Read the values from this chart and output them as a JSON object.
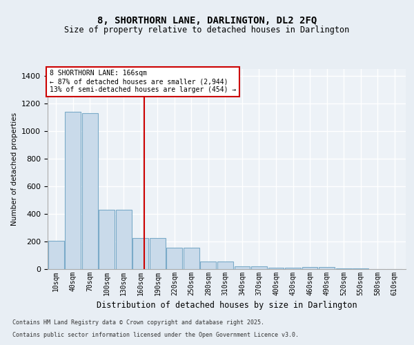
{
  "title1": "8, SHORTHORN LANE, DARLINGTON, DL2 2FQ",
  "title2": "Size of property relative to detached houses in Darlington",
  "xlabel": "Distribution of detached houses by size in Darlington",
  "ylabel": "Number of detached properties",
  "categories": [
    "10sqm",
    "40sqm",
    "70sqm",
    "100sqm",
    "130sqm",
    "160sqm",
    "190sqm",
    "220sqm",
    "250sqm",
    "280sqm",
    "310sqm",
    "340sqm",
    "370sqm",
    "400sqm",
    "430sqm",
    "460sqm",
    "490sqm",
    "520sqm",
    "550sqm",
    "580sqm",
    "610sqm"
  ],
  "values": [
    205,
    1140,
    1130,
    430,
    430,
    225,
    225,
    155,
    155,
    55,
    55,
    20,
    20,
    10,
    10,
    15,
    15,
    5,
    5,
    0,
    0
  ],
  "bar_color": "#c9daea",
  "bar_edge_color": "#7aaac8",
  "property_size": 166,
  "property_label": "8 SHORTHORN LANE: 166sqm",
  "annotation_line1": "← 87% of detached houses are smaller (2,944)",
  "annotation_line2": "13% of semi-detached houses are larger (454) →",
  "vline_color": "#cc0000",
  "annotation_box_color": "#cc0000",
  "bg_color": "#e8eef4",
  "plot_bg_color": "#edf2f7",
  "grid_color": "#ffffff",
  "ylim": [
    0,
    1450
  ],
  "footnote1": "Contains HM Land Registry data © Crown copyright and database right 2025.",
  "footnote2": "Contains public sector information licensed under the Open Government Licence v3.0."
}
